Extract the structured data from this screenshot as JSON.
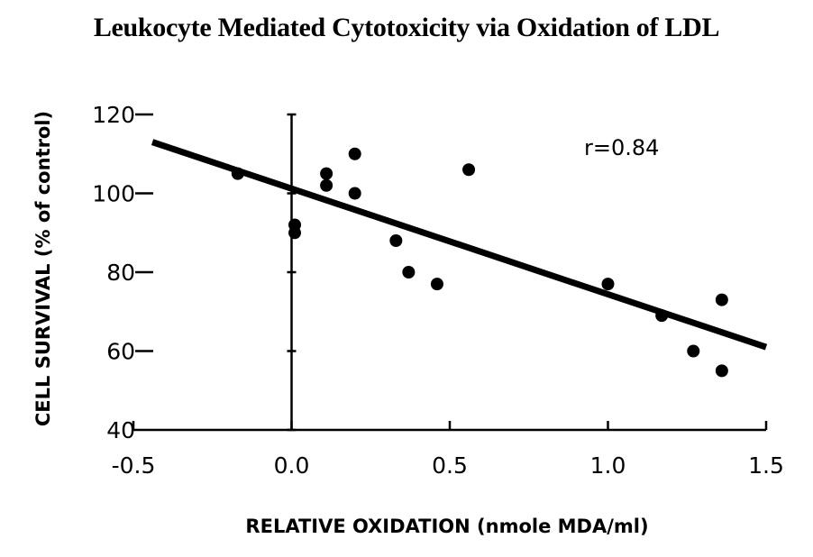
{
  "chart_data": {
    "type": "scatter",
    "title": "Leukocyte Mediated Cytotoxicity via Oxidation of LDL",
    "xlabel": "RELATIVE OXIDATION (nmole MDA/ml)",
    "ylabel": "CELL SURVIVAL (% of control)",
    "xlim": [
      -0.5,
      1.5
    ],
    "ylim": [
      40,
      120
    ],
    "xticks": [
      -0.5,
      0.0,
      0.5,
      1.0,
      1.5
    ],
    "xtick_labels": [
      "-0.5",
      "0.0",
      "0.5",
      "1.0",
      "1.5"
    ],
    "yticks": [
      40,
      60,
      80,
      100,
      120
    ],
    "ytick_labels": [
      "40",
      "60",
      "80",
      "100",
      "120"
    ],
    "points": [
      {
        "x": -0.17,
        "y": 105
      },
      {
        "x": 0.01,
        "y": 92
      },
      {
        "x": 0.01,
        "y": 90
      },
      {
        "x": 0.11,
        "y": 105
      },
      {
        "x": 0.11,
        "y": 102
      },
      {
        "x": 0.2,
        "y": 110
      },
      {
        "x": 0.2,
        "y": 100
      },
      {
        "x": 0.33,
        "y": 88
      },
      {
        "x": 0.37,
        "y": 80
      },
      {
        "x": 0.46,
        "y": 77
      },
      {
        "x": 0.56,
        "y": 106
      },
      {
        "x": 1.0,
        "y": 77
      },
      {
        "x": 1.17,
        "y": 69
      },
      {
        "x": 1.27,
        "y": 60
      },
      {
        "x": 1.36,
        "y": 73
      },
      {
        "x": 1.36,
        "y": 55
      }
    ],
    "fit_line": {
      "x": [
        -0.44,
        1.5
      ],
      "y": [
        113,
        61
      ]
    },
    "annotation": "r=0.84",
    "grid": false,
    "legend": false
  }
}
